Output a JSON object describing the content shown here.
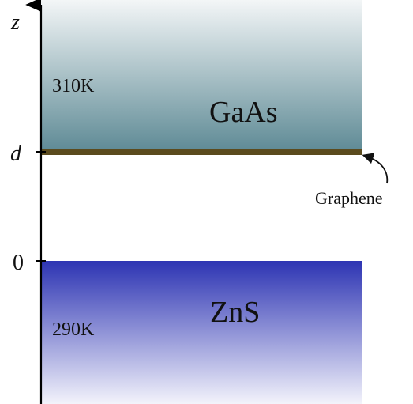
{
  "diagram": {
    "axis": {
      "label": "z",
      "ticks": {
        "top_interface": "d",
        "bottom_interface": "0"
      }
    },
    "regions": {
      "upper": {
        "material": "GaAs",
        "temperature": "310K",
        "gradient_colors": [
          "#5e8a95",
          "#f3f6f7"
        ]
      },
      "lower": {
        "material": "ZnS",
        "temperature": "290K",
        "gradient_colors": [
          "#2d34b3",
          "#f3f3fb"
        ]
      }
    },
    "interface_layer": {
      "label": "Graphene",
      "color": "#5b4b1e"
    }
  }
}
